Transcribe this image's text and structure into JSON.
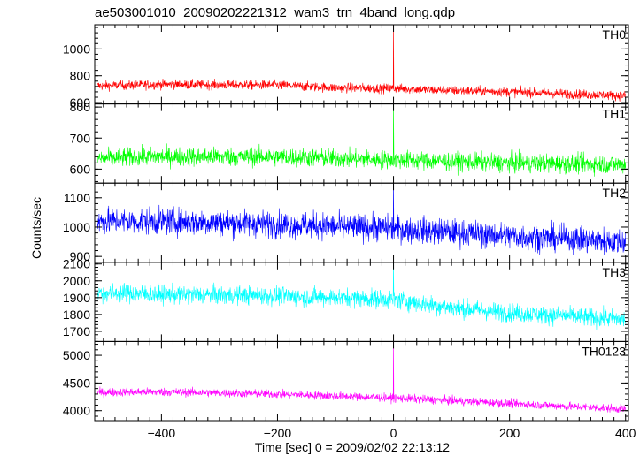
{
  "chart_data": {
    "type": "line",
    "title": "ae503001010_20090202221312_wam3_trn_4band_long.qdp",
    "xlabel": "Time [sec] 0 = 2009/02/02 22:13:12",
    "ylabel": "Counts/sec",
    "xlim": [
      -515,
      405
    ],
    "x_ticks": [
      -400,
      -200,
      0,
      200,
      400
    ],
    "x_tick_labels": [
      "−400",
      "−200",
      "0",
      "200",
      "400"
    ],
    "panels": [
      {
        "name": "TH0",
        "color": "#ff0000",
        "ylim": [
          590,
          1180
        ],
        "y_ticks": [
          600,
          800,
          1000
        ],
        "y_tick_labels": [
          "600",
          "800",
          "1000"
        ],
        "series_profile": {
          "x": [
            -510,
            -400,
            -200,
            -100,
            0,
            100,
            200,
            300,
            400
          ],
          "mean": [
            725,
            735,
            730,
            710,
            705,
            690,
            680,
            665,
            650
          ]
        },
        "noise_amplitude": 35,
        "spike": {
          "x": 0,
          "y": 1180
        }
      },
      {
        "name": "TH1",
        "color": "#00ff00",
        "ylim": [
          555,
          810
        ],
        "y_ticks": [
          600,
          700,
          800
        ],
        "y_tick_labels": [
          "600",
          "700",
          "800"
        ],
        "series_profile": {
          "x": [
            -510,
            -400,
            -200,
            0,
            200,
            400
          ],
          "mean": [
            635,
            640,
            640,
            630,
            620,
            615
          ]
        },
        "noise_amplitude": 30,
        "spike": {
          "x": 0,
          "y": 810
        }
      },
      {
        "name": "TH2",
        "color": "#0000ff",
        "ylim": [
          880,
          1150
        ],
        "y_ticks": [
          900,
          1000,
          1100
        ],
        "y_tick_labels": [
          "900",
          "1000",
          "1100"
        ],
        "series_profile": {
          "x": [
            -510,
            -400,
            -200,
            0,
            200,
            400
          ],
          "mean": [
            1020,
            1020,
            1010,
            995,
            970,
            950
          ]
        },
        "noise_amplitude": 45,
        "spike": {
          "x": 0,
          "y": 1150
        }
      },
      {
        "name": "TH3",
        "color": "#00ffff",
        "ylim": [
          1640,
          2110
        ],
        "y_ticks": [
          1700,
          1800,
          1900,
          2000,
          2100
        ],
        "y_tick_labels": [
          "1700",
          "1800",
          "1900",
          "2000",
          "2100"
        ],
        "series_profile": {
          "x": [
            -510,
            -400,
            -200,
            0,
            100,
            200,
            300,
            400
          ],
          "mean": [
            1930,
            1920,
            1910,
            1890,
            1840,
            1810,
            1790,
            1770
          ]
        },
        "noise_amplitude": 55,
        "spike": {
          "x": 0,
          "y": 2110
        }
      },
      {
        "name": "TH0123",
        "color": "#ff00ff",
        "ylim": [
          3820,
          5250
        ],
        "y_ticks": [
          4000,
          4500,
          5000
        ],
        "y_tick_labels": [
          "4000",
          "4500",
          "5000"
        ],
        "series_profile": {
          "x": [
            -510,
            -400,
            -200,
            0,
            200,
            400
          ],
          "mean": [
            4330,
            4340,
            4300,
            4230,
            4130,
            4030
          ]
        },
        "noise_amplitude": 75,
        "spike": {
          "x": 0,
          "y": 5250
        }
      }
    ]
  }
}
